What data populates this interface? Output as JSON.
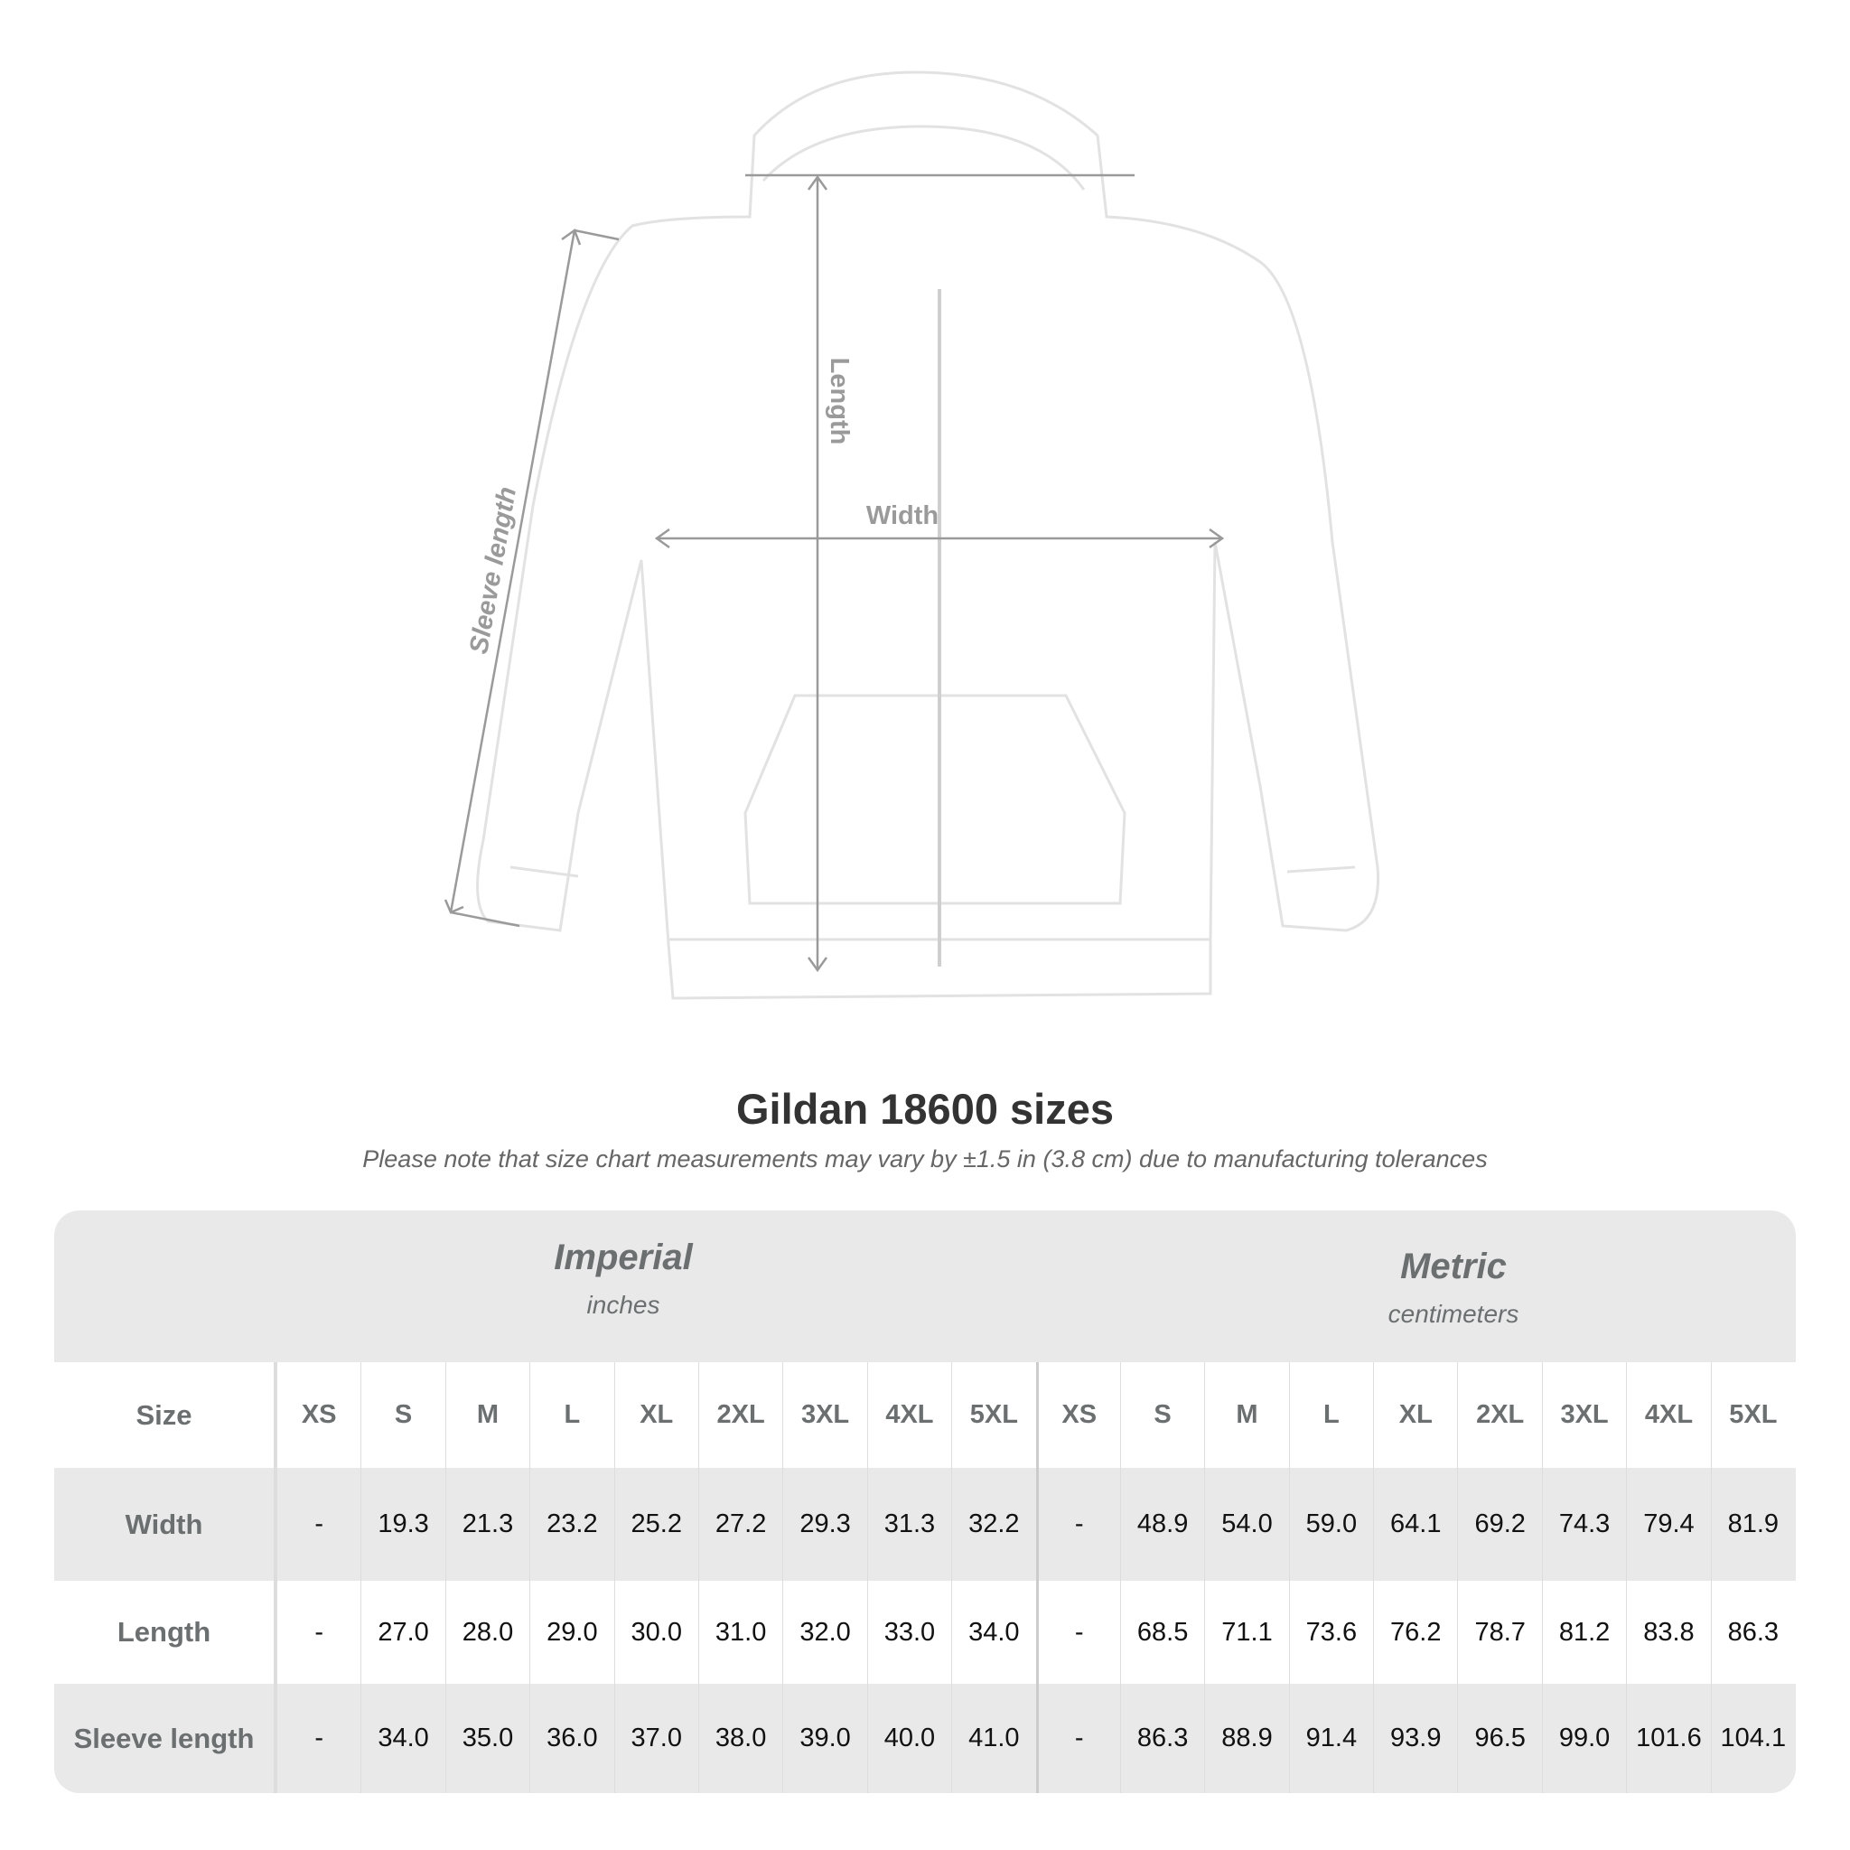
{
  "diagram": {
    "labels": {
      "length": "Length",
      "width": "Width",
      "sleeve": "Sleeve length"
    },
    "garment_color": "#ffffff",
    "line_color": "#9a9a9a"
  },
  "title": "Gildan 18600 sizes",
  "note": "Please note that size chart measurements may vary by ±1.5 in (3.8 cm) due to manufacturing tolerances",
  "table": {
    "imperial": {
      "name": "Imperial",
      "unit": "inches"
    },
    "metric": {
      "name": "Metric",
      "unit": "centimeters"
    },
    "size_label": "Size",
    "sizes": [
      "XS",
      "S",
      "M",
      "L",
      "XL",
      "2XL",
      "3XL",
      "4XL",
      "5XL"
    ],
    "rows": [
      {
        "label": "Width",
        "imperial": [
          "-",
          "19.3",
          "21.3",
          "23.2",
          "25.2",
          "27.2",
          "29.3",
          "31.3",
          "32.2"
        ],
        "metric": [
          "-",
          "48.9",
          "54.0",
          "59.0",
          "64.1",
          "69.2",
          "74.3",
          "79.4",
          "81.9"
        ]
      },
      {
        "label": "Length",
        "imperial": [
          "-",
          "27.0",
          "28.0",
          "29.0",
          "30.0",
          "31.0",
          "32.0",
          "33.0",
          "34.0"
        ],
        "metric": [
          "-",
          "68.5",
          "71.1",
          "73.6",
          "76.2",
          "78.7",
          "81.2",
          "83.8",
          "86.3"
        ]
      },
      {
        "label": "Sleeve length",
        "imperial": [
          "-",
          "34.0",
          "35.0",
          "36.0",
          "37.0",
          "38.0",
          "39.0",
          "40.0",
          "41.0"
        ],
        "metric": [
          "-",
          "86.3",
          "88.9",
          "91.4",
          "93.9",
          "96.5",
          "99.0",
          "101.6",
          "104.1"
        ]
      }
    ]
  }
}
